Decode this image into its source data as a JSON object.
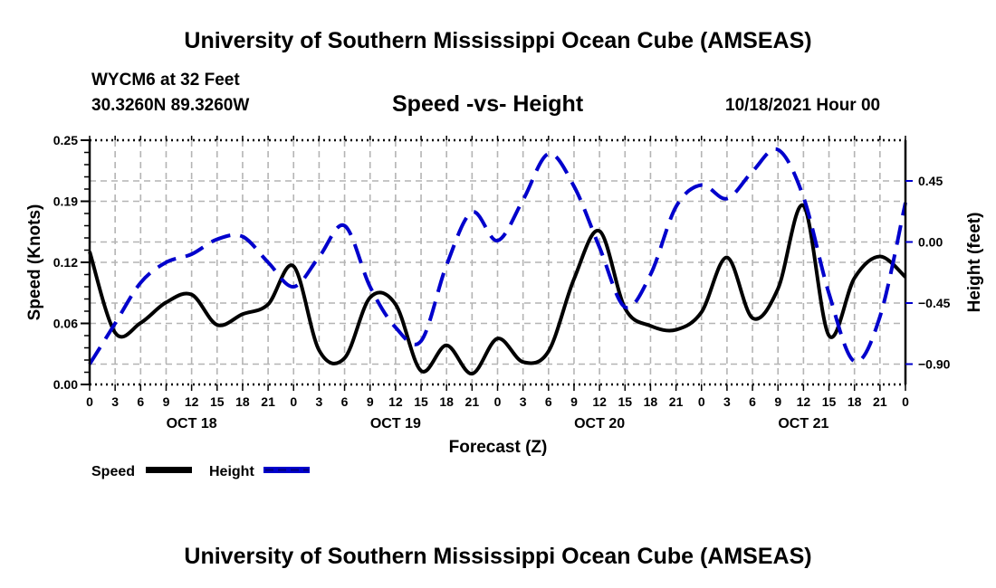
{
  "header": {
    "main_title": "University of Southern Mississippi Ocean Cube (AMSEAS)",
    "station": "WYCM6 at 32 Feet",
    "coordinates": "30.3260N  89.3260W",
    "subtitle": "Speed -vs- Height",
    "datetime": "10/18/2021 Hour 00"
  },
  "footer": {
    "title": "University of Southern Mississippi Ocean Cube (AMSEAS)"
  },
  "chart_data": {
    "type": "line",
    "title": "Speed -vs- Height",
    "xlabel": "Forecast (Z)",
    "ylabel": "Speed (Knots)",
    "y2label": "Height (feet)",
    "xlim": [
      0,
      96
    ],
    "ylim": [
      0,
      0.25
    ],
    "y2lim": [
      -1.05,
      0.75
    ],
    "grid": true,
    "legend_position": "bottom-left",
    "x_tick_labels": [
      "0",
      "3",
      "6",
      "9",
      "12",
      "15",
      "18",
      "21",
      "0",
      "3",
      "6",
      "9",
      "12",
      "15",
      "18",
      "21",
      "0",
      "3",
      "6",
      "9",
      "12",
      "15",
      "18",
      "21",
      "0",
      "3",
      "6",
      "9",
      "12",
      "15",
      "18",
      "21",
      "0"
    ],
    "day_labels": [
      {
        "label": "OCT 18",
        "hour": 12
      },
      {
        "label": "OCT 19",
        "hour": 36
      },
      {
        "label": "OCT 20",
        "hour": 60
      },
      {
        "label": "OCT 21",
        "hour": 84
      }
    ],
    "y_ticks": [
      {
        "value": 0.0,
        "label": "0.00"
      },
      {
        "value": 0.0625,
        "label": "0.06"
      },
      {
        "value": 0.125,
        "label": "0.12"
      },
      {
        "value": 0.1875,
        "label": "0.19"
      },
      {
        "value": 0.25,
        "label": "0.25"
      }
    ],
    "y2_ticks": [
      {
        "value": -0.9,
        "label": "−0.90"
      },
      {
        "value": -0.45,
        "label": "−0.45"
      },
      {
        "value": 0.0,
        "label": "0.00"
      },
      {
        "value": 0.45,
        "label": "0.45"
      }
    ],
    "x": [
      0,
      3,
      6,
      9,
      12,
      15,
      18,
      21,
      24,
      27,
      30,
      33,
      36,
      39,
      42,
      45,
      48,
      51,
      54,
      57,
      60,
      63,
      66,
      69,
      72,
      75,
      78,
      81,
      84,
      87,
      90,
      93,
      96
    ],
    "series": [
      {
        "name": "Speed",
        "axis": "left",
        "color": "#000000",
        "style": "solid",
        "values": [
          0.136,
          0.053,
          0.063,
          0.084,
          0.092,
          0.061,
          0.072,
          0.082,
          0.121,
          0.035,
          0.027,
          0.089,
          0.082,
          0.014,
          0.04,
          0.011,
          0.047,
          0.023,
          0.034,
          0.108,
          0.157,
          0.078,
          0.06,
          0.056,
          0.074,
          0.13,
          0.068,
          0.098,
          0.183,
          0.05,
          0.109,
          0.131,
          0.11
        ]
      },
      {
        "name": "Height",
        "axis": "right",
        "color": "#0000cc",
        "style": "dashed",
        "values": [
          -0.9,
          -0.6,
          -0.3,
          -0.15,
          -0.09,
          0.02,
          0.04,
          -0.15,
          -0.33,
          -0.11,
          0.12,
          -0.33,
          -0.63,
          -0.73,
          -0.17,
          0.22,
          0.01,
          0.31,
          0.65,
          0.41,
          -0.04,
          -0.48,
          -0.24,
          0.26,
          0.42,
          0.32,
          0.52,
          0.68,
          0.33,
          -0.38,
          -0.88,
          -0.55,
          0.29
        ]
      }
    ]
  }
}
